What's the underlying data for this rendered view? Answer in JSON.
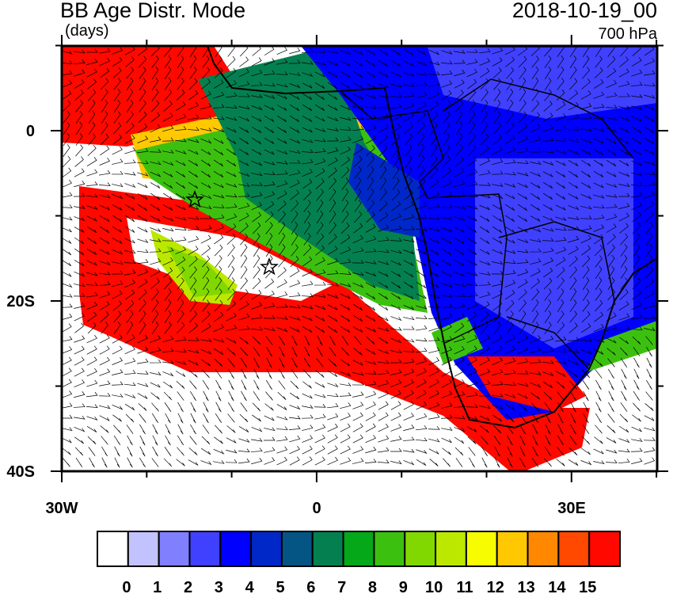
{
  "header": {
    "title": "BB Age Distr. Mode",
    "units": "(days)",
    "date": "2018-10-19_00",
    "level": "700 hPa"
  },
  "axes": {
    "lon_labels": [
      "30W",
      "0",
      "30E"
    ],
    "lat_labels": [
      "0",
      "20S",
      "40S"
    ],
    "lon_range": [
      -30,
      40
    ],
    "lat_range": [
      -40,
      10
    ]
  },
  "colorbar": {
    "labels": [
      "0",
      "1",
      "2",
      "3",
      "4",
      "5",
      "6",
      "7",
      "8",
      "9",
      "10",
      "11",
      "12",
      "13",
      "14",
      "15"
    ],
    "colors": [
      "#ffffff",
      "#c2c2ff",
      "#8080ff",
      "#4040ff",
      "#0000ff",
      "#0028c8",
      "#045484",
      "#048050",
      "#04a818",
      "#3cc010",
      "#80d800",
      "#bce800",
      "#f8fc00",
      "#ffc800",
      "#ff8800",
      "#ff4800",
      "#ff0800"
    ]
  },
  "markers": [
    {
      "type": "star",
      "lon": -14.4,
      "lat": -8
    },
    {
      "type": "star",
      "lon": -5.7,
      "lat": -16
    }
  ]
}
